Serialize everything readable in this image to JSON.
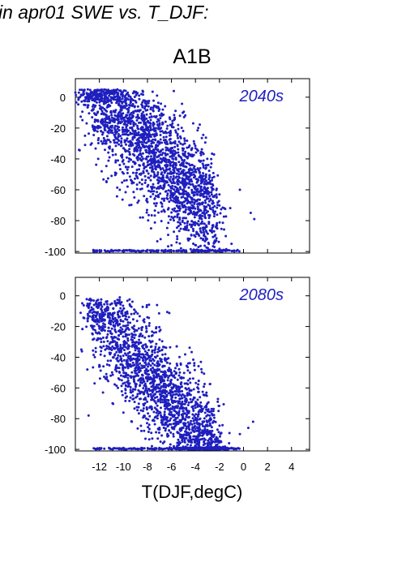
{
  "figure": {
    "title": "in apr01 SWE vs. T_DJF:",
    "scenario": "A1B",
    "xlabel": "T(DJF,degC)"
  },
  "colors": {
    "points": "#1f1fbf",
    "label": "#1f1fbf",
    "axes": "#000000"
  },
  "chart_data": [
    {
      "type": "scatter",
      "panel_label": "2040s",
      "xlim": [
        -14,
        5.5
      ],
      "ylim": [
        -101,
        12
      ],
      "xticks": [
        -12,
        -10,
        -8,
        -6,
        -4,
        -2,
        0,
        2,
        4
      ],
      "yticks": [
        0,
        -20,
        -40,
        -60,
        -80,
        -100
      ],
      "xlabel": "T(DJF,degC)",
      "ylabel": "",
      "grid": false,
      "points": [
        [
          -10.5,
          5
        ],
        [
          -9.0,
          3
        ],
        [
          -8.5,
          2
        ],
        [
          -7.2,
          1
        ],
        [
          -5.8,
          4
        ],
        [
          -11.3,
          -3
        ],
        [
          -10.1,
          -4
        ],
        [
          -9.4,
          -2
        ],
        [
          -8.2,
          -6
        ],
        [
          -7.5,
          -9
        ],
        [
          -6.8,
          -12
        ],
        [
          -6.1,
          -18
        ],
        [
          -5.5,
          -25
        ],
        [
          -4.9,
          -30
        ],
        [
          -4.4,
          -38
        ],
        [
          -3.6,
          -46
        ],
        [
          -12.6,
          -13
        ],
        [
          -11.8,
          -17
        ],
        [
          -10.7,
          -21
        ],
        [
          -9.9,
          -15
        ],
        [
          -9.2,
          -26
        ],
        [
          -8.7,
          -31
        ],
        [
          -7.9,
          -36
        ],
        [
          -7.1,
          -44
        ],
        [
          -6.4,
          -52
        ],
        [
          -5.7,
          -58
        ],
        [
          -5.0,
          -63
        ],
        [
          -4.3,
          -70
        ],
        [
          -3.7,
          -77
        ],
        [
          -3.1,
          -84
        ],
        [
          -2.4,
          -90
        ],
        [
          -13.2,
          -25
        ],
        [
          -12.1,
          -40
        ],
        [
          -11.4,
          -55
        ],
        [
          -10.3,
          -60
        ],
        [
          -9.5,
          -70
        ],
        [
          -8.6,
          -78
        ],
        [
          -7.7,
          -85
        ],
        [
          -6.9,
          -92
        ],
        [
          -6.0,
          -96
        ],
        [
          -5.2,
          -98
        ],
        [
          -1.6,
          -72
        ],
        [
          -1.0,
          -95
        ],
        [
          -0.3,
          -60
        ],
        [
          0.6,
          -75
        ],
        [
          0.9,
          -79
        ],
        [
          -2.0,
          -63
        ],
        [
          -8.9,
          -49
        ],
        [
          -10.9,
          -35
        ],
        [
          -7.4,
          -66
        ],
        [
          -12.5,
          -99
        ],
        [
          -11.0,
          -99
        ],
        [
          -9.5,
          -99
        ],
        [
          -8.0,
          -99
        ],
        [
          -6.5,
          -99
        ],
        [
          -5.0,
          -99
        ],
        [
          -3.5,
          -99
        ],
        [
          -2.0,
          -99
        ],
        [
          -0.5,
          -99
        ]
      ],
      "cluster_description": "dense scatter from x≈-13..1, y≈0 at cold end decreasing to ≈-100 at warm end; many points pinned at -100"
    },
    {
      "type": "scatter",
      "panel_label": "2080s",
      "xlim": [
        -14,
        5.5
      ],
      "ylim": [
        -101,
        12
      ],
      "xticks": [
        -12,
        -10,
        -8,
        -6,
        -4,
        -2,
        0,
        2,
        4
      ],
      "yticks": [
        0,
        -20,
        -40,
        -60,
        -80,
        -100
      ],
      "xlabel": "T(DJF,degC)",
      "ylabel": "",
      "grid": false,
      "points": [
        [
          -10.3,
          -1
        ],
        [
          -9.1,
          -9
        ],
        [
          -7.2,
          -6
        ],
        [
          -11.8,
          -14
        ],
        [
          -10.6,
          -18
        ],
        [
          -9.8,
          -25
        ],
        [
          -9.2,
          -32
        ],
        [
          -8.4,
          -38
        ],
        [
          -7.8,
          -42
        ],
        [
          -7.0,
          -48
        ],
        [
          -6.3,
          -55
        ],
        [
          -5.6,
          -60
        ],
        [
          -4.9,
          -66
        ],
        [
          -4.2,
          -72
        ],
        [
          -3.6,
          -80
        ],
        [
          -3.0,
          -88
        ],
        [
          -2.2,
          -95
        ],
        [
          -13.0,
          -48
        ],
        [
          -12.4,
          -57
        ],
        [
          -11.7,
          -63
        ],
        [
          -10.9,
          -70
        ],
        [
          -10.0,
          -76
        ],
        [
          -9.3,
          -82
        ],
        [
          -8.5,
          -88
        ],
        [
          -7.6,
          -93
        ],
        [
          -6.7,
          -96
        ],
        [
          -5.8,
          -98
        ],
        [
          -13.5,
          -35
        ],
        [
          -12.9,
          -78
        ],
        [
          -0.3,
          -90
        ],
        [
          0.4,
          -86
        ],
        [
          0.8,
          -82
        ],
        [
          -1.2,
          -96
        ],
        [
          -4.6,
          -44
        ],
        [
          -5.3,
          -50
        ],
        [
          -8.1,
          -20
        ],
        [
          -9.6,
          -40
        ],
        [
          -11.2,
          -99
        ],
        [
          -10.0,
          -99
        ],
        [
          -8.5,
          -99
        ],
        [
          -7.0,
          -99
        ],
        [
          -5.5,
          -99
        ],
        [
          -4.0,
          -99
        ],
        [
          -2.5,
          -99
        ],
        [
          -1.0,
          -99
        ]
      ],
      "cluster_description": "scatter shifted warmer/lower; most points between -60 and -100; many pinned at -100"
    }
  ]
}
